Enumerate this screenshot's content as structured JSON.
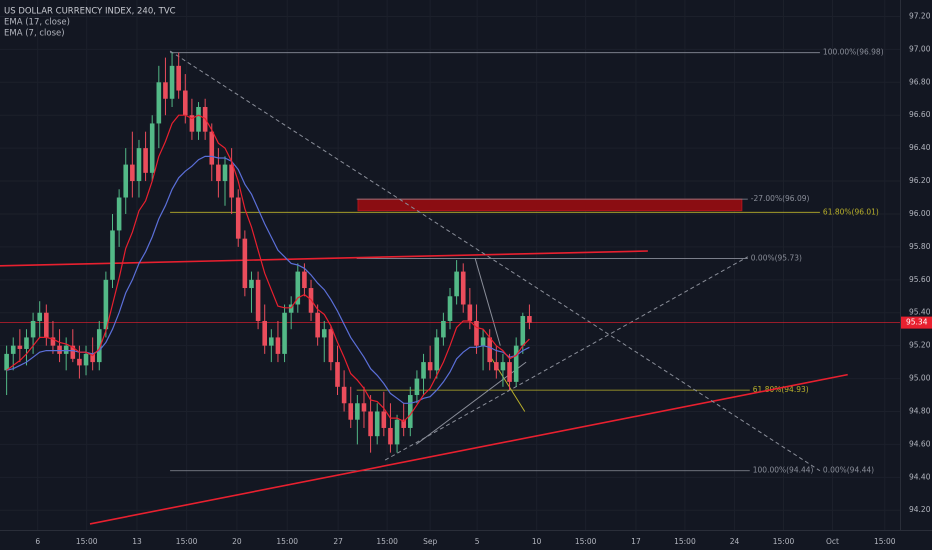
{
  "chart_data": {
    "type": "candlestick",
    "title": "US DOLLAR CURRENCY INDEX, 240, TVC",
    "up_color": "#53b987",
    "down_color": "#eb4d5c",
    "grid": true,
    "ylim": [
      94.08,
      97.3
    ],
    "yticks": [
      {
        "value": 94.2,
        "label": "94.20"
      },
      {
        "value": 94.4,
        "label": "94.40"
      },
      {
        "value": 94.6,
        "label": "94.60"
      },
      {
        "value": 94.8,
        "label": "94.80"
      },
      {
        "value": 95.0,
        "label": "95.00"
      },
      {
        "value": 95.2,
        "label": "95.20"
      },
      {
        "value": 95.4,
        "label": "95.40"
      },
      {
        "value": 95.6,
        "label": "95.60"
      },
      {
        "value": 95.8,
        "label": "95.80"
      },
      {
        "value": 96.0,
        "label": "96.00"
      },
      {
        "value": 96.2,
        "label": "96.20"
      },
      {
        "value": 96.4,
        "label": "96.40"
      },
      {
        "value": 96.6,
        "label": "96.60"
      },
      {
        "value": 96.8,
        "label": "96.80"
      },
      {
        "value": 97.0,
        "label": "97.00"
      },
      {
        "value": 97.2,
        "label": "97.20"
      }
    ],
    "xlim": [
      -1,
      135
    ],
    "xticks": [
      {
        "value": 4.7,
        "label": "6"
      },
      {
        "value": 12.1,
        "label": "15:00"
      },
      {
        "value": 19.7,
        "label": "13"
      },
      {
        "value": 27.2,
        "label": "15:00"
      },
      {
        "value": 34.8,
        "label": "20"
      },
      {
        "value": 42.4,
        "label": "15:00"
      },
      {
        "value": 50.1,
        "label": "27"
      },
      {
        "value": 57.5,
        "label": "15:00"
      },
      {
        "value": 64,
        "label": "Sep"
      },
      {
        "value": 71.1,
        "label": "5"
      },
      {
        "value": 80.1,
        "label": "10"
      },
      {
        "value": 87.5,
        "label": "15:00"
      },
      {
        "value": 95.1,
        "label": "17"
      },
      {
        "value": 102.5,
        "label": "15:00"
      },
      {
        "value": 110,
        "label": "24"
      },
      {
        "value": 117.4,
        "label": "15:00"
      },
      {
        "value": 124.8,
        "label": "Oct"
      },
      {
        "value": 132.7,
        "label": "15:00"
      }
    ],
    "candles": [
      [
        95.05,
        95.2,
        94.9,
        95.15
      ],
      [
        95.15,
        95.25,
        95.05,
        95.2
      ],
      [
        95.2,
        95.3,
        95.1,
        95.18
      ],
      [
        95.18,
        95.3,
        95.08,
        95.25
      ],
      [
        95.25,
        95.4,
        95.15,
        95.35
      ],
      [
        95.35,
        95.47,
        95.25,
        95.4
      ],
      [
        95.4,
        95.45,
        95.2,
        95.25
      ],
      [
        95.25,
        95.35,
        95.15,
        95.2
      ],
      [
        95.2,
        95.3,
        95.1,
        95.15
      ],
      [
        95.15,
        95.25,
        95.05,
        95.2
      ],
      [
        95.2,
        95.3,
        95.1,
        95.12
      ],
      [
        95.12,
        95.2,
        95.0,
        95.08
      ],
      [
        95.08,
        95.2,
        95.02,
        95.15
      ],
      [
        95.15,
        95.25,
        95.05,
        95.1
      ],
      [
        95.1,
        95.35,
        95.05,
        95.3
      ],
      [
        95.3,
        95.65,
        95.25,
        95.6
      ],
      [
        95.6,
        96.0,
        95.55,
        95.9
      ],
      [
        95.9,
        96.15,
        95.8,
        96.1
      ],
      [
        96.1,
        96.4,
        96.0,
        96.3
      ],
      [
        96.3,
        96.5,
        96.1,
        96.2
      ],
      [
        96.2,
        96.45,
        96.1,
        96.4
      ],
      [
        96.4,
        96.5,
        96.2,
        96.25
      ],
      [
        96.25,
        96.6,
        96.2,
        96.55
      ],
      [
        96.55,
        96.9,
        96.4,
        96.8
      ],
      [
        96.8,
        96.95,
        96.6,
        96.7
      ],
      [
        96.7,
        96.98,
        96.65,
        96.9
      ],
      [
        96.9,
        96.98,
        96.7,
        96.75
      ],
      [
        96.75,
        96.85,
        96.55,
        96.6
      ],
      [
        96.6,
        96.7,
        96.45,
        96.5
      ],
      [
        96.5,
        96.68,
        96.45,
        96.65
      ],
      [
        96.65,
        96.7,
        96.45,
        96.5
      ],
      [
        96.5,
        96.55,
        96.2,
        96.3
      ],
      [
        96.3,
        96.4,
        96.1,
        96.2
      ],
      [
        96.2,
        96.35,
        96.05,
        96.3
      ],
      [
        96.3,
        96.4,
        96.0,
        96.1
      ],
      [
        96.1,
        96.15,
        95.8,
        95.85
      ],
      [
        95.85,
        95.9,
        95.5,
        95.55
      ],
      [
        95.55,
        95.65,
        95.4,
        95.6
      ],
      [
        95.6,
        95.65,
        95.3,
        95.35
      ],
      [
        95.35,
        95.45,
        95.15,
        95.2
      ],
      [
        95.2,
        95.3,
        95.1,
        95.25
      ],
      [
        95.25,
        95.35,
        95.1,
        95.15
      ],
      [
        95.15,
        95.45,
        95.1,
        95.4
      ],
      [
        95.4,
        95.5,
        95.3,
        95.45
      ],
      [
        95.45,
        95.7,
        95.4,
        95.65
      ],
      [
        95.65,
        95.7,
        95.5,
        95.55
      ],
      [
        95.55,
        95.6,
        95.35,
        95.4
      ],
      [
        95.4,
        95.45,
        95.2,
        95.25
      ],
      [
        95.25,
        95.35,
        95.1,
        95.3
      ],
      [
        95.3,
        95.32,
        95.05,
        95.1
      ],
      [
        95.1,
        95.2,
        94.9,
        94.95
      ],
      [
        94.95,
        95.05,
        94.8,
        94.85
      ],
      [
        94.85,
        94.95,
        94.7,
        94.75
      ],
      [
        94.75,
        94.9,
        94.6,
        94.85
      ],
      [
        94.85,
        94.95,
        94.7,
        94.8
      ],
      [
        94.8,
        94.9,
        94.55,
        94.65
      ],
      [
        94.65,
        94.85,
        94.6,
        94.8
      ],
      [
        94.8,
        94.92,
        94.65,
        94.7
      ],
      [
        94.7,
        94.85,
        94.55,
        94.6
      ],
      [
        94.6,
        94.78,
        94.55,
        94.75
      ],
      [
        94.75,
        94.85,
        94.65,
        94.7
      ],
      [
        94.7,
        94.95,
        94.65,
        94.9
      ],
      [
        94.9,
        95.05,
        94.85,
        95.0
      ],
      [
        95.0,
        95.15,
        94.9,
        95.1
      ],
      [
        95.1,
        95.2,
        95.0,
        95.05
      ],
      [
        95.05,
        95.3,
        95.0,
        95.25
      ],
      [
        95.25,
        95.4,
        95.2,
        95.35
      ],
      [
        95.35,
        95.55,
        95.3,
        95.5
      ],
      [
        95.5,
        95.72,
        95.45,
        95.65
      ],
      [
        95.65,
        95.7,
        95.4,
        95.45
      ],
      [
        95.45,
        95.55,
        95.3,
        95.35
      ],
      [
        95.35,
        95.45,
        95.15,
        95.2
      ],
      [
        95.2,
        95.3,
        95.05,
        95.25
      ],
      [
        95.25,
        95.3,
        95.05,
        95.1
      ],
      [
        95.1,
        95.2,
        95.0,
        95.05
      ],
      [
        95.05,
        95.15,
        94.95,
        95.1
      ],
      [
        95.1,
        95.15,
        94.93,
        94.98
      ],
      [
        94.98,
        95.25,
        94.95,
        95.2
      ],
      [
        95.2,
        95.4,
        95.15,
        95.38
      ],
      [
        95.38,
        95.45,
        95.3,
        95.34
      ]
    ],
    "series": [
      {
        "name": "EMA (17, close)",
        "color": "#5b6fd8",
        "values": [
          95.05,
          95.06,
          95.08,
          95.1,
          95.13,
          95.16,
          95.17,
          95.17,
          95.17,
          95.17,
          95.17,
          95.16,
          95.16,
          95.15,
          95.17,
          95.22,
          95.3,
          95.4,
          95.52,
          95.6,
          95.7,
          95.77,
          95.86,
          95.97,
          96.05,
          96.15,
          96.22,
          96.26,
          96.29,
          96.33,
          96.35,
          96.35,
          96.34,
          96.34,
          96.32,
          96.27,
          96.18,
          96.12,
          96.03,
          95.94,
          95.86,
          95.78,
          95.74,
          95.7,
          95.69,
          95.67,
          95.63,
          95.58,
          95.54,
          95.48,
          95.41,
          95.33,
          95.25,
          95.19,
          95.13,
          95.06,
          95.02,
          94.97,
          94.91,
          94.88,
          94.85,
          94.85,
          94.86,
          94.88,
          94.89,
          94.93,
          94.98,
          95.04,
          95.12,
          95.16,
          95.19,
          95.19,
          95.2,
          95.19,
          95.17,
          95.16,
          95.13,
          95.14,
          95.17,
          95.19
        ]
      },
      {
        "name": "EMA (7, close)",
        "color": "#e8202f",
        "values": [
          95.05,
          95.08,
          95.11,
          95.15,
          95.2,
          95.25,
          95.25,
          95.24,
          95.22,
          95.21,
          95.19,
          95.16,
          95.16,
          95.14,
          95.18,
          95.29,
          95.45,
          95.61,
          95.79,
          95.89,
          96.02,
          96.08,
          96.2,
          96.35,
          96.44,
          96.55,
          96.6,
          96.6,
          96.58,
          96.6,
          96.58,
          96.51,
          96.43,
          96.4,
          96.32,
          96.2,
          96.03,
          95.92,
          95.78,
          95.64,
          95.54,
          95.44,
          95.43,
          95.43,
          95.49,
          95.51,
          95.48,
          95.42,
          95.39,
          95.32,
          95.22,
          95.13,
          95.03,
          94.99,
          94.94,
          94.87,
          94.86,
          94.82,
          94.76,
          94.76,
          94.74,
          94.78,
          94.84,
          94.9,
          94.94,
          95.02,
          95.1,
          95.2,
          95.31,
          95.35,
          95.35,
          95.31,
          95.3,
          95.25,
          95.2,
          95.17,
          95.12,
          95.14,
          95.2,
          95.24
        ]
      }
    ],
    "last_price": {
      "value": 95.34,
      "label": "95.34",
      "color": "#e8202f"
    },
    "fib_levels": [
      {
        "label": "100.00%(96.98)",
        "value": 96.98,
        "x": [
          24.7,
          122.9
        ],
        "color": "#8a8e99"
      },
      {
        "label": "61.80%(96.01)",
        "value": 96.01,
        "x": [
          24.7,
          122.9
        ],
        "color": "#b9b02b"
      },
      {
        "label": "-27.00%(96.09)",
        "value": 96.09,
        "x": [
          52.9,
          112
        ],
        "color": "#8a8e99"
      },
      {
        "label": "0.00%(95.73)",
        "value": 95.73,
        "x": [
          52.9,
          112
        ],
        "color": "#8a8e99"
      },
      {
        "label": "61.80%(94.93)",
        "value": 94.93,
        "x": [
          52.9,
          112.3
        ],
        "color": "#b9b02b"
      },
      {
        "label": "100.00%(94.44)",
        "value": 94.44,
        "x": [
          24.7,
          112.3
        ],
        "color": "#8a8e99"
      },
      {
        "label": "0.00%(94.44)",
        "value": 94.44,
        "x": [
          122.9,
          122.9
        ],
        "color": "#8a8e99"
      }
    ],
    "zone": {
      "x": [
        53.1,
        111.1
      ],
      "y": [
        96.02,
        96.09
      ],
      "color": "#8b0d12"
    },
    "trend_lines": [
      {
        "x": [
          -1,
          96.9
        ],
        "y": [
          95.685,
          95.775
        ],
        "color": "#e8202f",
        "width": 1.6,
        "dash": false
      },
      {
        "x": [
          12.6,
          127.1
        ],
        "y": [
          94.117,
          95.024
        ],
        "color": "#e8202f",
        "width": 1.6,
        "dash": false
      },
      {
        "x": [
          24.7,
          122.9
        ],
        "y": [
          96.99,
          94.44
        ],
        "color": "#8a8e99",
        "width": 1,
        "dash": true
      },
      {
        "x": [
          57.2,
          112
        ],
        "y": [
          94.505,
          95.74
        ],
        "color": "#8a8e99",
        "width": 1,
        "dash": true
      },
      {
        "x": [
          70.8,
          74.6
        ],
        "y": [
          95.73,
          95.2
        ],
        "color": "#8a8e99",
        "width": 1,
        "dash": false
      },
      {
        "x": [
          73,
          78.3
        ],
        "y": [
          95.14,
          94.8
        ],
        "color": "#b9b02b",
        "width": 1,
        "dash": false
      },
      {
        "x": [
          61.9,
          78.5
        ],
        "y": [
          94.6,
          95.1
        ],
        "color": "#8a8e99",
        "width": 1,
        "dash": false
      }
    ]
  }
}
